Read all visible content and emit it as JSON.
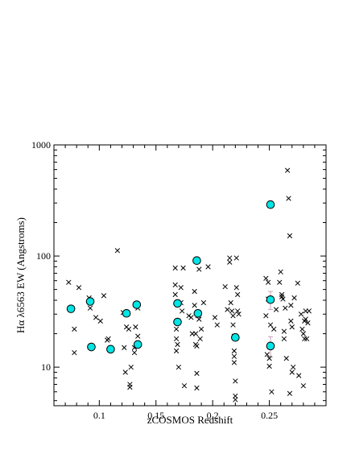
{
  "chart_data": {
    "type": "scatter",
    "title": "",
    "xlabel": "zCOSMOS Redshift",
    "ylabel": "Hα λ6563 EW (Angstroms)",
    "xlim": [
      0.06,
      0.3
    ],
    "ylim": [
      4.5,
      1000
    ],
    "y_scale": "log",
    "grid": false,
    "x_ticks": [
      0.1,
      0.15,
      0.2,
      0.25
    ],
    "x_tick_labels": [
      "0.1",
      "0.15",
      "0.2",
      "0.25"
    ],
    "y_ticks": [
      10,
      100,
      1000
    ],
    "y_tick_labels": [
      "10",
      "100",
      "1000"
    ],
    "series": [
      {
        "marker": "x",
        "color": "#000000",
        "points": [
          [
            0.073,
            58
          ],
          [
            0.078,
            22
          ],
          [
            0.078,
            13.5
          ],
          [
            0.082,
            52
          ],
          [
            0.091,
            42
          ],
          [
            0.092,
            34
          ],
          [
            0.097,
            28
          ],
          [
            0.101,
            26
          ],
          [
            0.104,
            44
          ],
          [
            0.107,
            17.5
          ],
          [
            0.108,
            18
          ],
          [
            0.116,
            112
          ],
          [
            0.121,
            31
          ],
          [
            0.122,
            15
          ],
          [
            0.123,
            9
          ],
          [
            0.124,
            23
          ],
          [
            0.126,
            22
          ],
          [
            0.127,
            7
          ],
          [
            0.127,
            6.6
          ],
          [
            0.128,
            10
          ],
          [
            0.131,
            15
          ],
          [
            0.131,
            13.5
          ],
          [
            0.132,
            23
          ],
          [
            0.134,
            34
          ],
          [
            0.134,
            19
          ],
          [
            0.167,
            78
          ],
          [
            0.167,
            55
          ],
          [
            0.167,
            45
          ],
          [
            0.168,
            22
          ],
          [
            0.168,
            18
          ],
          [
            0.168,
            14
          ],
          [
            0.169,
            16
          ],
          [
            0.17,
            10
          ],
          [
            0.172,
            52
          ],
          [
            0.172,
            38
          ],
          [
            0.173,
            32
          ],
          [
            0.174,
            78
          ],
          [
            0.175,
            6.8
          ],
          [
            0.179,
            29
          ],
          [
            0.181,
            28
          ],
          [
            0.182,
            20
          ],
          [
            0.184,
            48
          ],
          [
            0.184,
            36
          ],
          [
            0.185,
            20
          ],
          [
            0.185,
            16
          ],
          [
            0.186,
            15.5
          ],
          [
            0.186,
            8.8
          ],
          [
            0.186,
            6.5
          ],
          [
            0.187,
            29
          ],
          [
            0.188,
            76
          ],
          [
            0.188,
            27
          ],
          [
            0.189,
            18
          ],
          [
            0.19,
            22
          ],
          [
            0.192,
            38
          ],
          [
            0.196,
            80
          ],
          [
            0.202,
            28
          ],
          [
            0.204,
            24
          ],
          [
            0.211,
            53
          ],
          [
            0.213,
            33
          ],
          [
            0.215,
            96
          ],
          [
            0.215,
            88
          ],
          [
            0.216,
            38
          ],
          [
            0.217,
            32
          ],
          [
            0.218,
            29
          ],
          [
            0.218,
            24
          ],
          [
            0.219,
            19
          ],
          [
            0.219,
            14
          ],
          [
            0.219,
            12.5
          ],
          [
            0.219,
            11
          ],
          [
            0.22,
            7.5
          ],
          [
            0.22,
            5.5
          ],
          [
            0.22,
            5.1
          ],
          [
            0.221,
            96
          ],
          [
            0.221,
            52
          ],
          [
            0.222,
            45
          ],
          [
            0.222,
            32
          ],
          [
            0.223,
            30
          ],
          [
            0.247,
            63
          ],
          [
            0.247,
            29
          ],
          [
            0.248,
            13
          ],
          [
            0.249,
            58
          ],
          [
            0.249,
            41
          ],
          [
            0.25,
            12
          ],
          [
            0.25,
            10.2
          ],
          [
            0.251,
            24
          ],
          [
            0.252,
            6
          ],
          [
            0.254,
            22
          ],
          [
            0.256,
            33
          ],
          [
            0.259,
            58
          ],
          [
            0.26,
            72
          ],
          [
            0.261,
            45
          ],
          [
            0.261,
            43
          ],
          [
            0.262,
            41
          ],
          [
            0.263,
            21
          ],
          [
            0.263,
            18
          ],
          [
            0.264,
            34
          ],
          [
            0.265,
            12
          ],
          [
            0.266,
            590
          ],
          [
            0.267,
            330
          ],
          [
            0.268,
            152
          ],
          [
            0.268,
            5.8
          ],
          [
            0.269,
            36
          ],
          [
            0.269,
            26
          ],
          [
            0.27,
            23
          ],
          [
            0.27,
            9
          ],
          [
            0.271,
            10
          ],
          [
            0.272,
            42
          ],
          [
            0.275,
            57
          ],
          [
            0.276,
            8.4
          ],
          [
            0.278,
            30
          ],
          [
            0.279,
            22
          ],
          [
            0.28,
            20
          ],
          [
            0.28,
            6.8
          ],
          [
            0.281,
            26
          ],
          [
            0.281,
            18
          ],
          [
            0.282,
            32
          ],
          [
            0.282,
            27
          ],
          [
            0.283,
            18
          ],
          [
            0.284,
            25
          ],
          [
            0.285,
            32
          ]
        ]
      },
      {
        "marker": "circle",
        "color": "#00e5e5",
        "points": [
          [
            0.075,
            33.5
          ],
          [
            0.092,
            39
          ],
          [
            0.093,
            15.2
          ],
          [
            0.11,
            14.5
          ],
          [
            0.124,
            30.5
          ],
          [
            0.133,
            36.5
          ],
          [
            0.134,
            16
          ],
          [
            0.169,
            37.5
          ],
          [
            0.169,
            25.5
          ],
          [
            0.186,
            91
          ],
          [
            0.187,
            30.5
          ],
          [
            0.22,
            18.5
          ],
          [
            0.251,
            290
          ],
          [
            0.251,
            40.5
          ],
          [
            0.251,
            15.5
          ]
        ]
      }
    ],
    "error_bars": [
      {
        "x": 0.186,
        "y": 91,
        "low": 86,
        "high": 96
      },
      {
        "x": 0.251,
        "y": 40.5,
        "low": 33,
        "high": 48
      },
      {
        "x": 0.251,
        "y": 15.5,
        "low": 12.3,
        "high": 18.8
      }
    ],
    "error_bar_color": "#c8a0b8"
  }
}
